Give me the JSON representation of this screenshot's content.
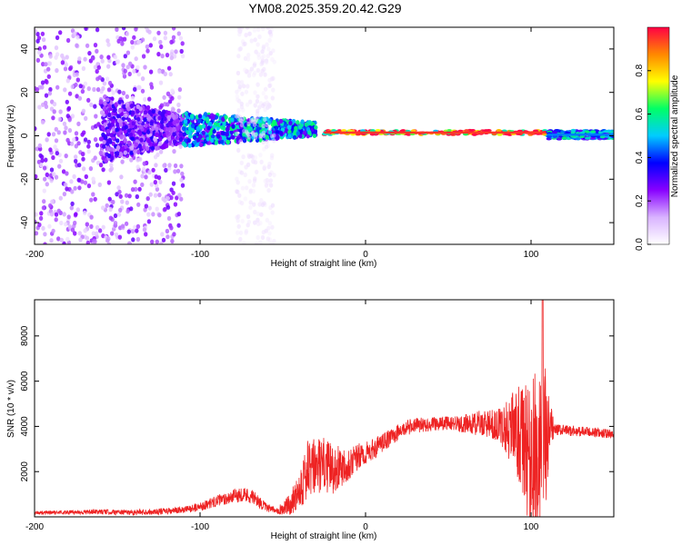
{
  "page_title": "YM08.2025.359.20.42.G29",
  "colors": {
    "snr_line": "#ee2222",
    "frame": "#000000",
    "colormap": [
      "#ffffff",
      "#d9b3ff",
      "#8800ff",
      "#0000ff",
      "#00ccff",
      "#00ff66",
      "#ffff00",
      "#ff8800",
      "#ff0044"
    ]
  },
  "chart_data": [
    {
      "type": "heatmap",
      "title": "",
      "xlabel": "Height of straight line (km)",
      "ylabel": "Frequency (Hz)",
      "xlim": [
        -200,
        150
      ],
      "ylim": [
        -50,
        50
      ],
      "x_ticks": [
        -200,
        -100,
        0,
        100
      ],
      "y_ticks": [
        -40,
        -20,
        0,
        20,
        40
      ],
      "colorbar": {
        "label": "Normalized spectral amplitude",
        "range": [
          0,
          1
        ],
        "ticks": [
          0.0,
          0.2,
          0.4,
          0.6,
          0.8
        ]
      },
      "bands": [
        {
          "x_from": -200,
          "x_to": -110,
          "freq_spread": 50,
          "amplitude": 0.15,
          "note_kind": "noise"
        },
        {
          "x_from": -160,
          "x_to": -110,
          "freq_spread": 12,
          "amplitude": 0.25,
          "note_kind": "cluster"
        },
        {
          "x_from": -110,
          "x_to": -30,
          "freq_spread": 6,
          "amplitude": 0.45,
          "note_kind": "cluster"
        },
        {
          "x_from": -78,
          "x_to": -55,
          "freq_spread": 50,
          "amplitude": 0.05,
          "note_kind": "faint"
        },
        {
          "x_from": -25,
          "x_to": 110,
          "freq_center": 1.5,
          "freq_spread": 1.0,
          "amplitude": 0.95,
          "note_kind": "line"
        },
        {
          "x_from": 110,
          "x_to": 150,
          "freq_center": 0.5,
          "freq_spread": 2.0,
          "amplitude": 0.45,
          "note_kind": "line"
        }
      ]
    },
    {
      "type": "line",
      "title": "",
      "xlabel": "Height of straight line (km)",
      "ylabel": "SNR (10 * v/v)",
      "xlim": [
        -200,
        150
      ],
      "ylim": [
        0,
        9600
      ],
      "x_ticks": [
        -200,
        -100,
        0,
        100
      ],
      "y_ticks": [
        2000,
        4000,
        6000,
        8000
      ],
      "series": [
        {
          "points": [
            [
              -200,
              180
            ],
            [
              -180,
              200
            ],
            [
              -160,
              220
            ],
            [
              -140,
              200
            ],
            [
              -120,
              250
            ],
            [
              -110,
              300
            ],
            [
              -100,
              450
            ],
            [
              -90,
              700
            ],
            [
              -80,
              900
            ],
            [
              -75,
              1000
            ],
            [
              -70,
              950
            ],
            [
              -65,
              700
            ],
            [
              -60,
              400
            ],
            [
              -55,
              300
            ],
            [
              -50,
              350
            ],
            [
              -45,
              600
            ],
            [
              -40,
              1300
            ],
            [
              -35,
              2000
            ],
            [
              -30,
              2200
            ],
            [
              -25,
              2300
            ],
            [
              -20,
              2100
            ],
            [
              -15,
              2250
            ],
            [
              -10,
              2400
            ],
            [
              -5,
              2600
            ],
            [
              0,
              2800
            ],
            [
              5,
              3000
            ],
            [
              10,
              3250
            ],
            [
              15,
              3500
            ],
            [
              20,
              3750
            ],
            [
              25,
              3950
            ],
            [
              30,
              4050
            ],
            [
              40,
              4100
            ],
            [
              50,
              4150
            ],
            [
              60,
              4100
            ],
            [
              70,
              4150
            ],
            [
              80,
              4050
            ],
            [
              90,
              3900
            ],
            [
              95,
              3300
            ],
            [
              100,
              2700
            ],
            [
              105,
              2400
            ],
            [
              108,
              2800
            ],
            [
              112,
              3900
            ],
            [
              115,
              3850
            ],
            [
              125,
              3800
            ],
            [
              135,
              3750
            ],
            [
              150,
              3650
            ]
          ],
          "noise": [
            [
              -200,
              80
            ],
            [
              -110,
              150
            ],
            [
              -90,
              250
            ],
            [
              -70,
              350
            ],
            [
              -55,
              120
            ],
            [
              -45,
              500
            ],
            [
              -35,
              1400
            ],
            [
              -20,
              1100
            ],
            [
              -10,
              800
            ],
            [
              0,
              500
            ],
            [
              20,
              350
            ],
            [
              50,
              300
            ],
            [
              80,
              700
            ],
            [
              88,
              1600
            ],
            [
              95,
              2500
            ],
            [
              100,
              3400
            ],
            [
              104,
              4200
            ],
            [
              108,
              4500
            ],
            [
              111,
              1500
            ],
            [
              114,
              250
            ],
            [
              150,
              200
            ]
          ],
          "peak": {
            "x": 107,
            "y": 9600
          }
        }
      ]
    }
  ]
}
